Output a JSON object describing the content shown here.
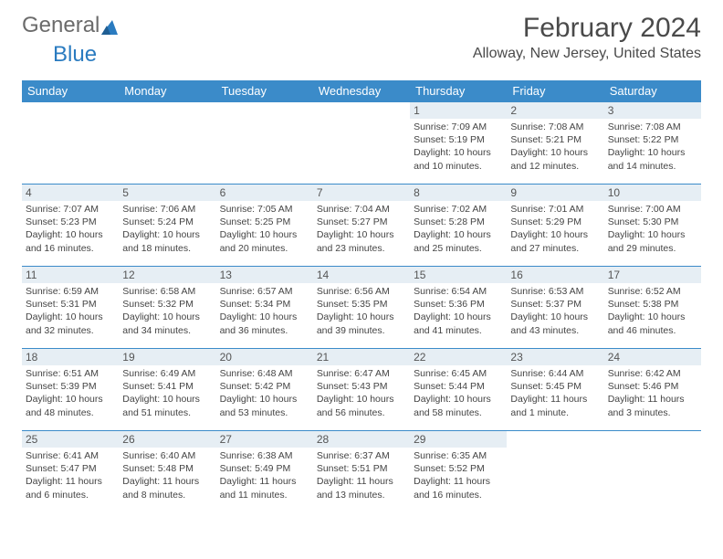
{
  "logo": {
    "text1": "General",
    "text2": "Blue"
  },
  "title": "February 2024",
  "location": "Alloway, New Jersey, United States",
  "colors": {
    "header_bg": "#3b8bc9",
    "header_fg": "#ffffff",
    "daynum_bg": "#e6eef4",
    "border": "#3b8bc9",
    "logo_gray": "#6b6b6b",
    "logo_blue": "#2a7bc0",
    "text": "#444444"
  },
  "fonts": {
    "title_size_pt": 22,
    "location_size_pt": 12,
    "header_size_pt": 10,
    "daynum_size_pt": 9,
    "detail_size_pt": 8
  },
  "weekdays": [
    "Sunday",
    "Monday",
    "Tuesday",
    "Wednesday",
    "Thursday",
    "Friday",
    "Saturday"
  ],
  "weeks": [
    [
      null,
      null,
      null,
      null,
      {
        "n": "1",
        "sunrise": "7:09 AM",
        "sunset": "5:19 PM",
        "daylight": "10 hours and 10 minutes."
      },
      {
        "n": "2",
        "sunrise": "7:08 AM",
        "sunset": "5:21 PM",
        "daylight": "10 hours and 12 minutes."
      },
      {
        "n": "3",
        "sunrise": "7:08 AM",
        "sunset": "5:22 PM",
        "daylight": "10 hours and 14 minutes."
      }
    ],
    [
      {
        "n": "4",
        "sunrise": "7:07 AM",
        "sunset": "5:23 PM",
        "daylight": "10 hours and 16 minutes."
      },
      {
        "n": "5",
        "sunrise": "7:06 AM",
        "sunset": "5:24 PM",
        "daylight": "10 hours and 18 minutes."
      },
      {
        "n": "6",
        "sunrise": "7:05 AM",
        "sunset": "5:25 PM",
        "daylight": "10 hours and 20 minutes."
      },
      {
        "n": "7",
        "sunrise": "7:04 AM",
        "sunset": "5:27 PM",
        "daylight": "10 hours and 23 minutes."
      },
      {
        "n": "8",
        "sunrise": "7:02 AM",
        "sunset": "5:28 PM",
        "daylight": "10 hours and 25 minutes."
      },
      {
        "n": "9",
        "sunrise": "7:01 AM",
        "sunset": "5:29 PM",
        "daylight": "10 hours and 27 minutes."
      },
      {
        "n": "10",
        "sunrise": "7:00 AM",
        "sunset": "5:30 PM",
        "daylight": "10 hours and 29 minutes."
      }
    ],
    [
      {
        "n": "11",
        "sunrise": "6:59 AM",
        "sunset": "5:31 PM",
        "daylight": "10 hours and 32 minutes."
      },
      {
        "n": "12",
        "sunrise": "6:58 AM",
        "sunset": "5:32 PM",
        "daylight": "10 hours and 34 minutes."
      },
      {
        "n": "13",
        "sunrise": "6:57 AM",
        "sunset": "5:34 PM",
        "daylight": "10 hours and 36 minutes."
      },
      {
        "n": "14",
        "sunrise": "6:56 AM",
        "sunset": "5:35 PM",
        "daylight": "10 hours and 39 minutes."
      },
      {
        "n": "15",
        "sunrise": "6:54 AM",
        "sunset": "5:36 PM",
        "daylight": "10 hours and 41 minutes."
      },
      {
        "n": "16",
        "sunrise": "6:53 AM",
        "sunset": "5:37 PM",
        "daylight": "10 hours and 43 minutes."
      },
      {
        "n": "17",
        "sunrise": "6:52 AM",
        "sunset": "5:38 PM",
        "daylight": "10 hours and 46 minutes."
      }
    ],
    [
      {
        "n": "18",
        "sunrise": "6:51 AM",
        "sunset": "5:39 PM",
        "daylight": "10 hours and 48 minutes."
      },
      {
        "n": "19",
        "sunrise": "6:49 AM",
        "sunset": "5:41 PM",
        "daylight": "10 hours and 51 minutes."
      },
      {
        "n": "20",
        "sunrise": "6:48 AM",
        "sunset": "5:42 PM",
        "daylight": "10 hours and 53 minutes."
      },
      {
        "n": "21",
        "sunrise": "6:47 AM",
        "sunset": "5:43 PM",
        "daylight": "10 hours and 56 minutes."
      },
      {
        "n": "22",
        "sunrise": "6:45 AM",
        "sunset": "5:44 PM",
        "daylight": "10 hours and 58 minutes."
      },
      {
        "n": "23",
        "sunrise": "6:44 AM",
        "sunset": "5:45 PM",
        "daylight": "11 hours and 1 minute."
      },
      {
        "n": "24",
        "sunrise": "6:42 AM",
        "sunset": "5:46 PM",
        "daylight": "11 hours and 3 minutes."
      }
    ],
    [
      {
        "n": "25",
        "sunrise": "6:41 AM",
        "sunset": "5:47 PM",
        "daylight": "11 hours and 6 minutes."
      },
      {
        "n": "26",
        "sunrise": "6:40 AM",
        "sunset": "5:48 PM",
        "daylight": "11 hours and 8 minutes."
      },
      {
        "n": "27",
        "sunrise": "6:38 AM",
        "sunset": "5:49 PM",
        "daylight": "11 hours and 11 minutes."
      },
      {
        "n": "28",
        "sunrise": "6:37 AM",
        "sunset": "5:51 PM",
        "daylight": "11 hours and 13 minutes."
      },
      {
        "n": "29",
        "sunrise": "6:35 AM",
        "sunset": "5:52 PM",
        "daylight": "11 hours and 16 minutes."
      },
      null,
      null
    ]
  ]
}
